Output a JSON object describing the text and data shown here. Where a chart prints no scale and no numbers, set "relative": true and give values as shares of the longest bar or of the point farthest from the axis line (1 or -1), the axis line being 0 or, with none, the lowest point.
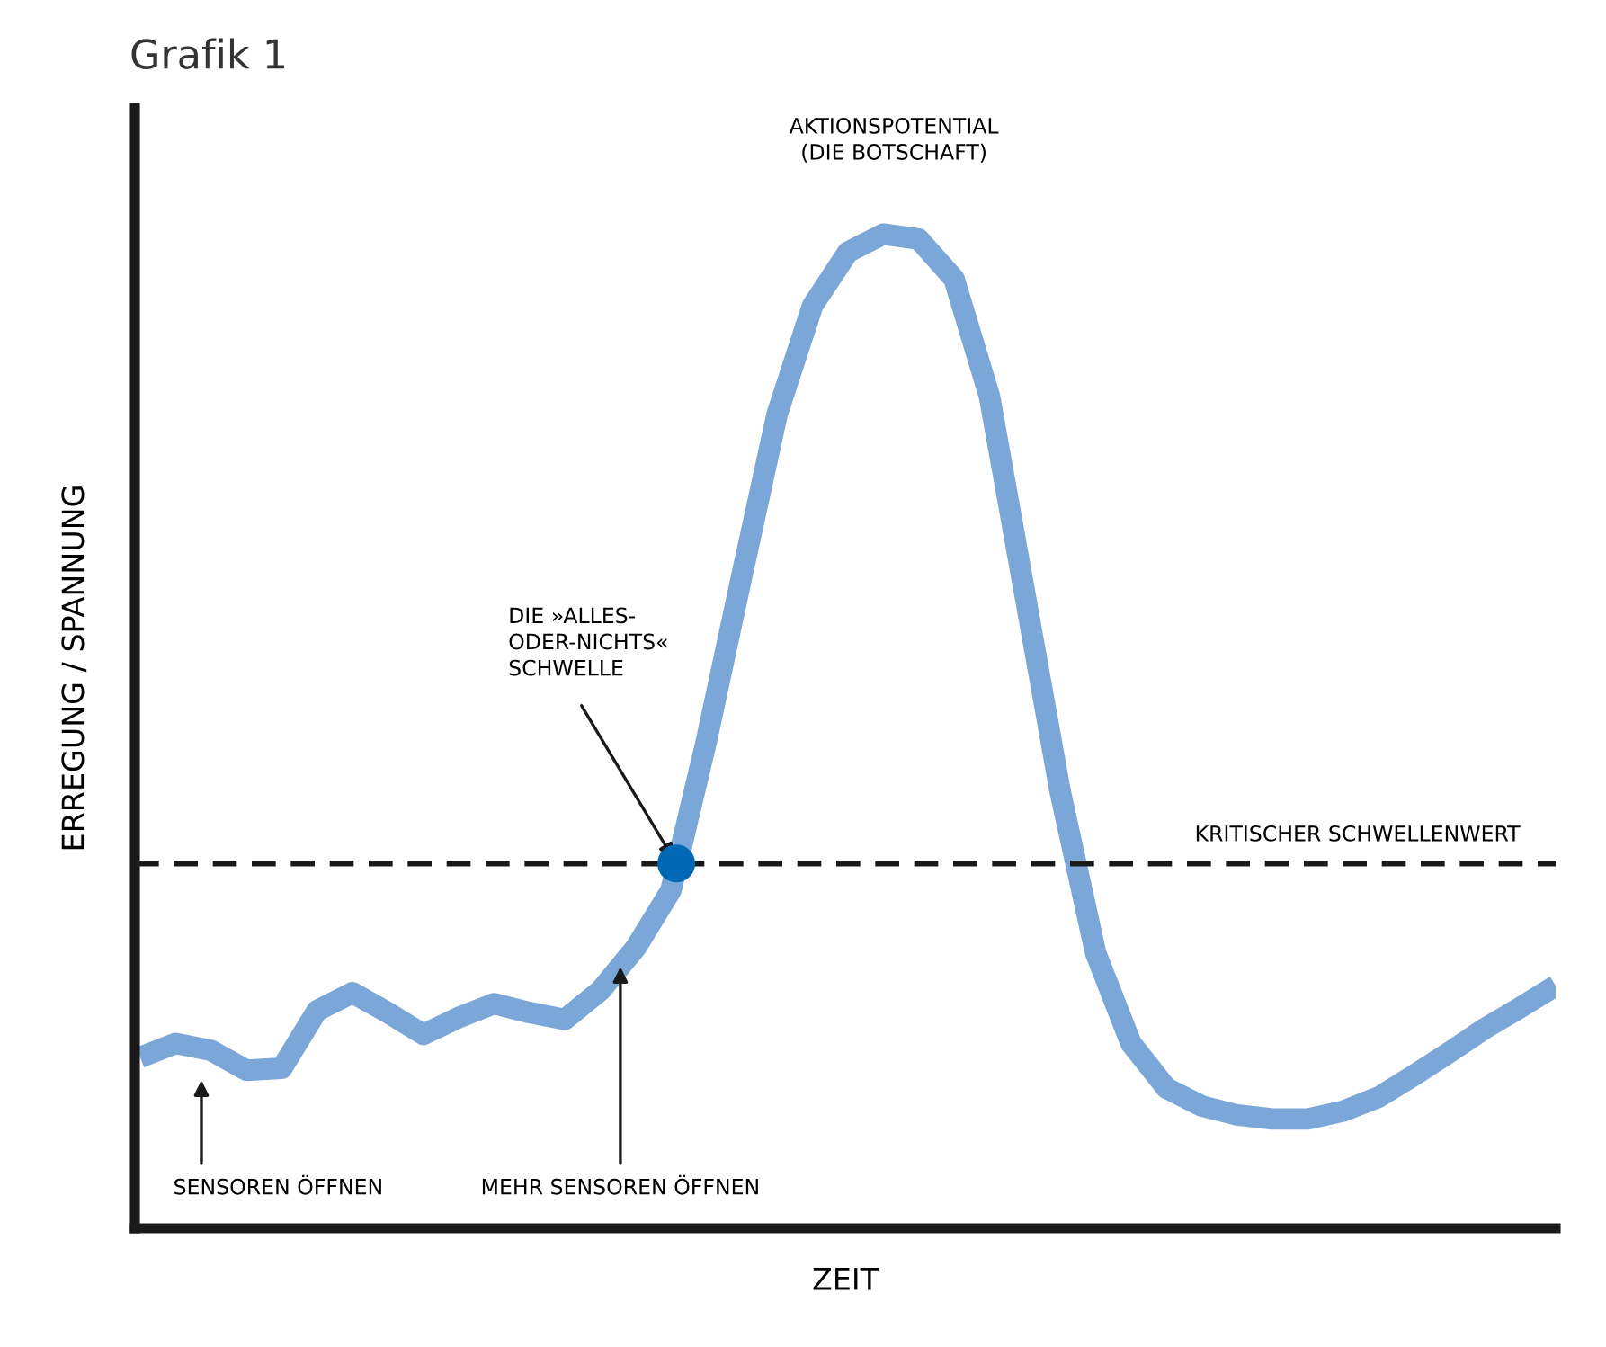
{
  "chart_data": {
    "type": "line",
    "title": "Grafik 1",
    "xlabel": "ZEIT",
    "ylabel": "ERREGUNG / SPANNUNG",
    "relative": true,
    "categories": [
      null,
      null,
      null,
      null,
      null,
      null,
      null,
      null,
      null,
      null,
      null,
      null,
      null,
      null,
      null,
      null,
      null,
      null,
      null,
      null,
      null,
      null,
      null,
      null,
      null,
      null,
      null,
      null,
      null,
      null,
      null,
      null,
      null,
      null,
      null,
      null,
      null,
      null,
      null,
      null,
      null
    ],
    "series": [
      {
        "color": "#7ba7d8",
        "values": [
          0.172,
          0.186,
          0.179,
          0.159,
          0.161,
          0.219,
          0.237,
          0.217,
          0.195,
          0.212,
          0.226,
          0.217,
          0.21,
          0.239,
          0.282,
          0.34,
          0.49,
          0.656,
          0.819,
          0.928,
          0.982,
          1.0,
          0.995,
          0.955,
          0.837,
          0.638,
          0.439,
          0.277,
          0.186,
          0.141,
          0.123,
          0.114,
          0.11,
          0.11,
          0.118,
          0.132,
          0.154,
          0.177,
          0.201,
          0.222,
          0.244
        ]
      }
    ],
    "ref_lines": [
      {
        "axis": "y",
        "value": 0.367,
        "label": "KRITISCHER SCHWELLENWERT",
        "color": "#1a1a1a",
        "line_style": "dashed"
      }
    ],
    "annotations": [
      "AKTIONSPOTENTIAL\n(DIE BOTSCHAFT)",
      "DIE »ALLES-\nODER-NICHTS«\nSCHWELLE",
      "SENSOREN ÖFFNEN",
      "MEHR SENSOREN ÖFFNEN"
    ],
    "grid": false,
    "legend": false,
    "marker": "none",
    "line_style": "solid"
  }
}
